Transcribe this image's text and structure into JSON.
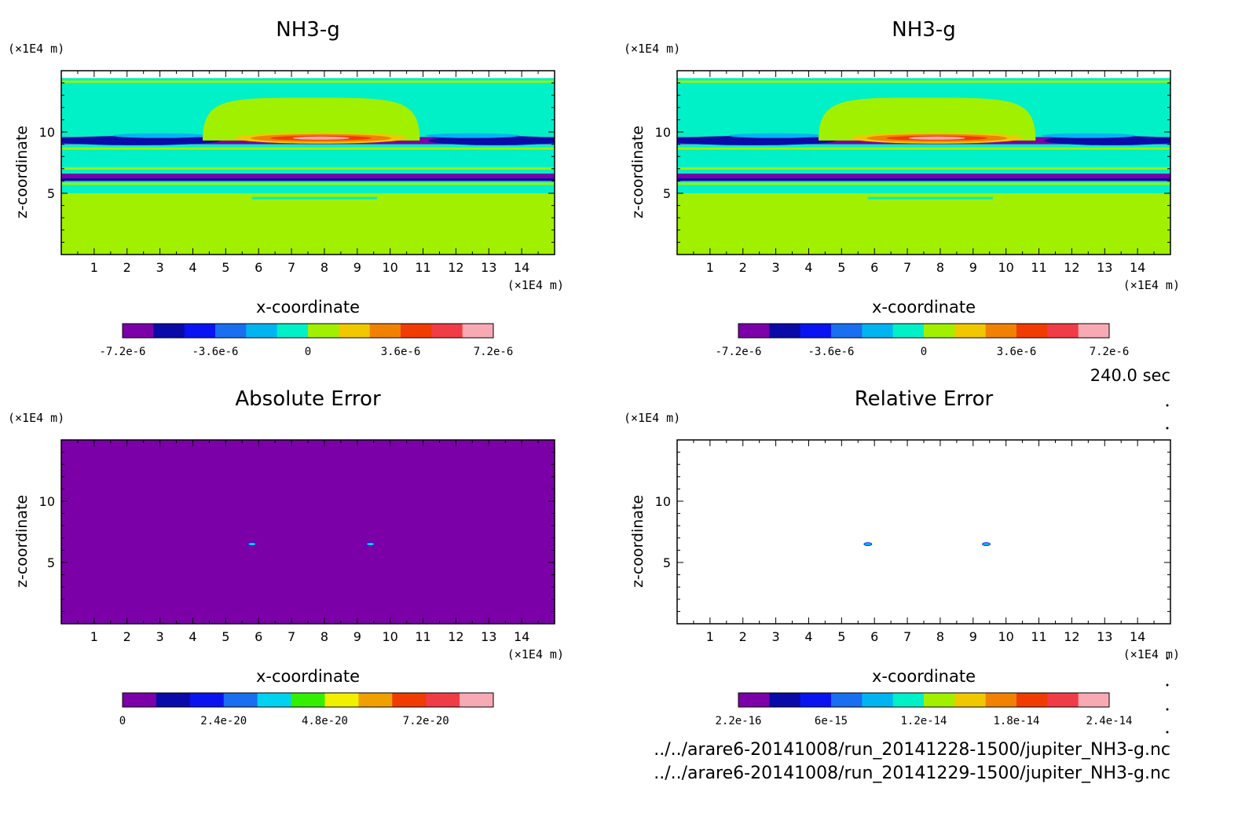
{
  "panels": [
    {
      "title": "NH3-g",
      "type": "contour",
      "xlabel": "x-coordinate",
      "ylabel": "z-coordinate",
      "x_unit": "(×1E4 m)",
      "y_unit": "(×1E4 m)",
      "xlim": [
        0,
        15
      ],
      "ylim": [
        0,
        15
      ],
      "x_ticks": [
        "1",
        "2",
        "3",
        "4",
        "5",
        "6",
        "7",
        "8",
        "9",
        "10",
        "11",
        "12",
        "13",
        "14"
      ],
      "y_ticks": [
        "5",
        "10"
      ],
      "colorbar": {
        "colors": [
          "#7b00a8",
          "#0a0aa8",
          "#0a14f0",
          "#1a6ef0",
          "#00b4f0",
          "#00f0c8",
          "#a0f000",
          "#f0c800",
          "#f08200",
          "#f03c00",
          "#f03c46",
          "#f8aab4"
        ],
        "tick_labels": [
          "-7.2e-6",
          "-3.6e-6",
          "0",
          "3.6e-6",
          "7.2e-6"
        ]
      }
    },
    {
      "title": "NH3-g",
      "type": "contour",
      "xlabel": "x-coordinate",
      "ylabel": "z-coordinate",
      "x_unit": "(×1E4 m)",
      "y_unit": "(×1E4 m)",
      "xlim": [
        0,
        15
      ],
      "ylim": [
        0,
        15
      ],
      "x_ticks": [
        "1",
        "2",
        "3",
        "4",
        "5",
        "6",
        "7",
        "8",
        "9",
        "10",
        "11",
        "12",
        "13",
        "14"
      ],
      "y_ticks": [
        "5",
        "10"
      ],
      "colorbar": {
        "colors": [
          "#7b00a8",
          "#0a0aa8",
          "#0a14f0",
          "#1a6ef0",
          "#00b4f0",
          "#00f0c8",
          "#a0f000",
          "#f0c800",
          "#f08200",
          "#f03c00",
          "#f03c46",
          "#f8aab4"
        ],
        "tick_labels": [
          "-7.2e-6",
          "-3.6e-6",
          "0",
          "3.6e-6",
          "7.2e-6"
        ]
      }
    },
    {
      "title": "Absolute Error",
      "type": "contour",
      "xlabel": "x-coordinate",
      "ylabel": "z-coordinate",
      "x_unit": "(×1E4 m)",
      "y_unit": "(×1E4 m)",
      "xlim": [
        0,
        15
      ],
      "ylim": [
        0,
        15
      ],
      "x_ticks": [
        "1",
        "2",
        "3",
        "4",
        "5",
        "6",
        "7",
        "8",
        "9",
        "10",
        "11",
        "12",
        "13",
        "14"
      ],
      "y_ticks": [
        "5",
        "10"
      ],
      "colorbar": {
        "colors": [
          "#7b00a8",
          "#0a0aa8",
          "#0a14f0",
          "#1a6ef0",
          "#00d2f0",
          "#32f000",
          "#f0f000",
          "#f0a000",
          "#f03c00",
          "#f03c46",
          "#f8aab4"
        ],
        "tick_labels": [
          "0",
          "2.4e-20",
          "4.8e-20",
          "7.2e-20"
        ]
      }
    },
    {
      "title": "Relative Error",
      "type": "contour",
      "xlabel": "x-coordinate",
      "ylabel": "z-coordinate",
      "x_unit": "(×1E4 m)",
      "y_unit": "(×1E4 m)",
      "xlim": [
        0,
        15
      ],
      "ylim": [
        0,
        15
      ],
      "x_ticks": [
        "1",
        "2",
        "3",
        "4",
        "5",
        "6",
        "7",
        "8",
        "9",
        "10",
        "11",
        "12",
        "13",
        "14"
      ],
      "y_ticks": [
        "5",
        "10"
      ],
      "colorbar": {
        "colors": [
          "#7b00a8",
          "#0a0aa8",
          "#0a14f0",
          "#1a6ef0",
          "#00b4f0",
          "#00f0c8",
          "#a0f000",
          "#f0c800",
          "#f08200",
          "#f03c00",
          "#f03c46",
          "#f8aab4"
        ],
        "tick_labels": [
          "2.2e-16",
          "6e-15",
          "1.2e-14",
          "1.8e-14",
          "2.4e-14"
        ]
      }
    }
  ],
  "time_label": "240.0 sec",
  "footer": {
    "file_1": "../../arare6-20141008/run_20141228-1500/jupiter_NH3-g.nc",
    "file_2": "../../arare6-20141008/run_20141229-1500/jupiter_NH3-g.nc"
  },
  "chart_data": [
    {
      "type": "heatmap",
      "title": "NH3-g",
      "xlabel": "x-coordinate",
      "ylabel": "z-coordinate",
      "xlim": [
        0,
        15
      ],
      "ylim": [
        0,
        15
      ],
      "bands": [
        {
          "z": [
            0,
            5.0
          ],
          "level": 6
        },
        {
          "z": [
            5.0,
            6.0
          ],
          "level": 5
        },
        {
          "z": [
            6.0,
            6.6
          ],
          "level": 1
        },
        {
          "z": [
            6.6,
            9.0
          ],
          "level": 5
        },
        {
          "z": [
            9.0,
            9.6
          ],
          "level": 0
        },
        {
          "z": [
            9.6,
            14.4
          ],
          "level": 5
        }
      ],
      "dome": {
        "x": [
          4.3,
          10.9
        ],
        "z_top": 12.8,
        "level": 6
      },
      "max_core": {
        "x": [
          6.0,
          9.8
        ],
        "z": [
          9.2,
          9.8
        ],
        "level": 10
      }
    },
    {
      "type": "heatmap",
      "title": "NH3-g",
      "xlabel": "x-coordinate",
      "ylabel": "z-coordinate",
      "xlim": [
        0,
        15
      ],
      "ylim": [
        0,
        15
      ],
      "bands": [
        {
          "z": [
            0,
            5.0
          ],
          "level": 6
        },
        {
          "z": [
            5.0,
            6.0
          ],
          "level": 5
        },
        {
          "z": [
            6.0,
            6.6
          ],
          "level": 1
        },
        {
          "z": [
            6.6,
            9.0
          ],
          "level": 5
        },
        {
          "z": [
            9.0,
            9.6
          ],
          "level": 0
        },
        {
          "z": [
            9.6,
            14.4
          ],
          "level": 5
        }
      ],
      "dome": {
        "x": [
          4.3,
          10.9
        ],
        "z_top": 12.8,
        "level": 6
      },
      "max_core": {
        "x": [
          6.0,
          9.8
        ],
        "z": [
          9.2,
          9.8
        ],
        "level": 10
      }
    },
    {
      "type": "heatmap",
      "title": "Absolute Error",
      "xlabel": "x-coordinate",
      "ylabel": "z-coordinate",
      "xlim": [
        0,
        15
      ],
      "ylim": [
        0,
        15
      ],
      "background_level": 0,
      "spots": [
        {
          "x": 5.8,
          "z": 6.5
        },
        {
          "x": 9.4,
          "z": 6.5
        }
      ]
    },
    {
      "type": "heatmap",
      "title": "Relative Error",
      "xlabel": "x-coordinate",
      "ylabel": "z-coordinate",
      "xlim": [
        0,
        15
      ],
      "ylim": [
        0,
        15
      ],
      "background_level": null,
      "spots": [
        {
          "x": 5.8,
          "z": 6.5
        },
        {
          "x": 9.4,
          "z": 6.5
        }
      ]
    }
  ]
}
